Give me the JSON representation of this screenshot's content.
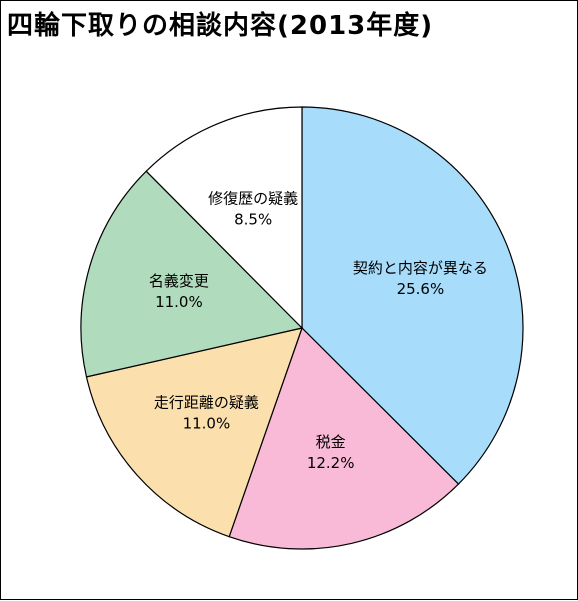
{
  "chart_data": {
    "type": "pie",
    "title": "四輪下取りの相談内容(2013年度)",
    "slices": [
      {
        "label": "契約と内容が異なる",
        "value": 25.6,
        "value_label": "25.6%",
        "color": "#a7dcfa"
      },
      {
        "label": "税金",
        "value": 12.2,
        "value_label": "12.2%",
        "color": "#f9bad7"
      },
      {
        "label": "走行距離の疑義",
        "value": 11.0,
        "value_label": "11.0%",
        "color": "#fbe0ae"
      },
      {
        "label": "名義変更",
        "value": 11.0,
        "value_label": "11.0%",
        "color": "#b0dcbd"
      },
      {
        "label": "修復歴の疑義",
        "value": 8.5,
        "value_label": "8.5%",
        "color": "#ffffff"
      }
    ],
    "start_angle_deg": 0,
    "direction": "clockwise"
  }
}
